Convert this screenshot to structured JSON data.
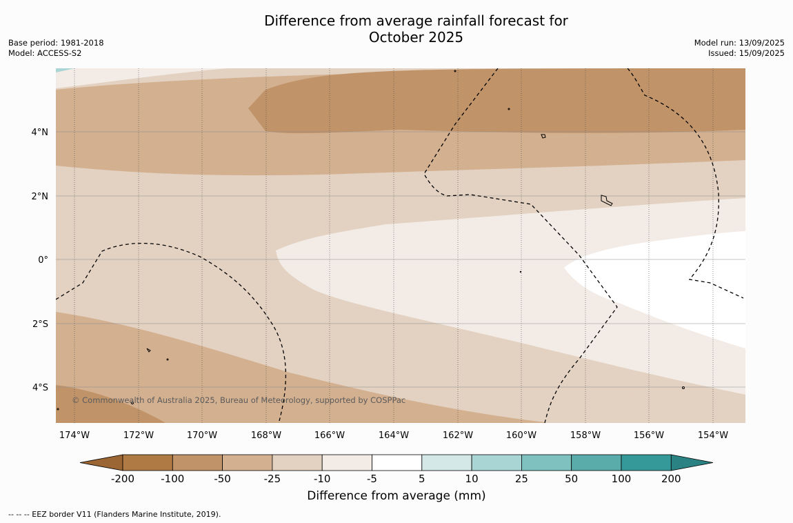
{
  "header": {
    "title_line1": "Difference from average rainfall forecast for",
    "title_line2": "October 2025",
    "base_period": "Base period: 1981-2018",
    "model": "Model: ACCESS-S2",
    "model_run": "Model run: 13/09/2025",
    "issued": "Issued: 15/09/2025"
  },
  "map": {
    "lat_labels": [
      "4°N",
      "2°N",
      "0°",
      "2°S",
      "4°S"
    ],
    "lon_labels": [
      "174°W",
      "172°W",
      "170°W",
      "168°W",
      "166°W",
      "164°W",
      "162°W",
      "160°W",
      "158°W",
      "156°W",
      "154°W"
    ],
    "copyright": "© Commonwealth of Australia 2025, Bureau of Meteorology, supported by COSPPac"
  },
  "colorbar": {
    "ticks": [
      "-200",
      "-100",
      "-50",
      "-25",
      "-10",
      "-5",
      "5",
      "10",
      "25",
      "50",
      "100",
      "200"
    ],
    "colors": [
      "#9b6633",
      "#b07a45",
      "#c09369",
      "#d3b090",
      "#e3d1c1",
      "#f3ece6",
      "#ffffff",
      "#d4e9e7",
      "#a9d5d4",
      "#7fc1bf",
      "#5aacab",
      "#35999a",
      "#2a8282"
    ],
    "label": "Difference from average (mm)"
  },
  "footnote": "--  --  -- EEZ border V11 (Flanders Marine Institute, 2019)."
}
